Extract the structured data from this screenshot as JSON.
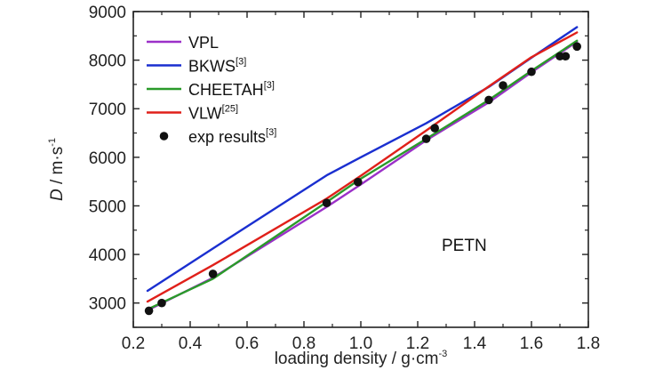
{
  "chart_data": {
    "type": "line",
    "xlabel_main": "loading density / g·cm",
    "xlabel_sup": "-3",
    "ylabel_italic": "D",
    "ylabel_rest": " / m·s",
    "ylabel_sup": "-1",
    "xlim": [
      0.2,
      1.8
    ],
    "ylim": [
      2500,
      9000
    ],
    "xticks": [
      0.2,
      0.4,
      0.6,
      0.8,
      1.0,
      1.2,
      1.4,
      1.6,
      1.8
    ],
    "xtick_labels": [
      "0.2",
      "0.4",
      "0.6",
      "0.8",
      "1.0",
      "1.2",
      "1.4",
      "1.6",
      "1.8"
    ],
    "yticks": [
      3000,
      4000,
      5000,
      6000,
      7000,
      8000,
      9000
    ],
    "ytick_labels": [
      "3000",
      "4000",
      "5000",
      "6000",
      "7000",
      "8000",
      "9000"
    ],
    "annotation": "PETN",
    "series": [
      {
        "name": "VPL",
        "sup": "",
        "color": "#9b30c8",
        "x": [
          0.25,
          0.48,
          0.88,
          1.0,
          1.23,
          1.45,
          1.6,
          1.76
        ],
        "y": [
          2850,
          3520,
          4980,
          5440,
          6350,
          7130,
          7750,
          8380
        ]
      },
      {
        "name": "BKWS",
        "sup": "[3]",
        "color": "#1a2fd0",
        "x": [
          0.25,
          0.5,
          0.88,
          1.0,
          1.23,
          1.45,
          1.6,
          1.76
        ],
        "y": [
          3250,
          4200,
          5630,
          6000,
          6700,
          7450,
          8050,
          8680
        ]
      },
      {
        "name": "CHEETAH",
        "sup": "[3]",
        "color": "#2a9a2a",
        "x": [
          0.25,
          0.48,
          0.88,
          1.0,
          1.23,
          1.45,
          1.6,
          1.76
        ],
        "y": [
          2870,
          3500,
          5080,
          5560,
          6380,
          7180,
          7780,
          8400
        ]
      },
      {
        "name": "VLW",
        "sup": "[25]",
        "color": "#e0201a",
        "x": [
          0.25,
          0.48,
          0.88,
          1.0,
          1.23,
          1.45,
          1.6,
          1.76
        ],
        "y": [
          3030,
          3780,
          5150,
          5620,
          6550,
          7460,
          8060,
          8570
        ]
      }
    ],
    "scatter": {
      "name": "exp results",
      "sup": "[3]",
      "color": "#111111",
      "x": [
        0.255,
        0.3,
        0.48,
        0.88,
        0.99,
        1.23,
        1.26,
        1.45,
        1.5,
        1.6,
        1.7,
        1.72,
        1.76
      ],
      "y": [
        2840,
        3000,
        3600,
        5060,
        5490,
        6380,
        6600,
        7180,
        7480,
        7760,
        8080,
        8080,
        8280
      ]
    }
  }
}
